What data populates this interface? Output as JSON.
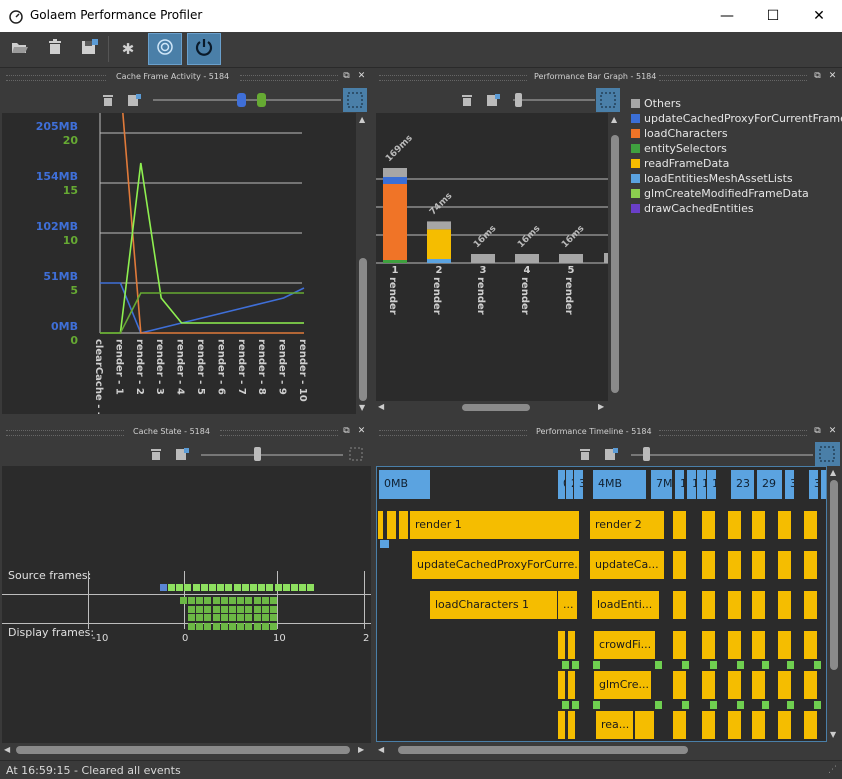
{
  "window": {
    "title": "Golaem Performance Profiler",
    "minimize": "—",
    "maximize": "☐",
    "close": "✕"
  },
  "toolbar": {
    "items": [
      "open-icon",
      "delete-icon",
      "save-icon",
      "settings-icon",
      "record-icon",
      "power-icon"
    ]
  },
  "panels": {
    "cache_frame": {
      "title": "Cache Frame Activity - 5184"
    },
    "bar_graph": {
      "title": "Performance Bar Graph - 5184"
    },
    "cache_state": {
      "title": "Cache State - 5184"
    },
    "timeline": {
      "title": "Performance Timeline - 5184"
    }
  },
  "chart_data": [
    {
      "type": "line",
      "title": "Cache Frame Activity - 5184",
      "categories": [
        "clearCache - -1",
        "render - 1",
        "render - 2",
        "render - 3",
        "render - 4",
        "render - 5",
        "render - 6",
        "render - 7",
        "render - 8",
        "render - 9",
        "render - 10"
      ],
      "left_axis_mb": [
        "205MB",
        "154MB",
        "102MB",
        "51MB",
        "0MB"
      ],
      "left_axis_counts": [
        "20",
        "15",
        "10",
        "5",
        "0"
      ],
      "series": [
        {
          "color": "#3f6fd8",
          "values": [
            5,
            5,
            0,
            0.5,
            1,
            1.5,
            2,
            2.5,
            3,
            3.5,
            4.5
          ]
        },
        {
          "color": "#e07a3a",
          "values": [
            25,
            25,
            0,
            0,
            0,
            0,
            0,
            0,
            0,
            0,
            0
          ]
        },
        {
          "color": "#8ef050",
          "values": [
            0,
            0,
            17,
            3.5,
            1,
            1,
            1,
            1,
            1,
            1,
            1
          ]
        },
        {
          "color": "#66aa33",
          "values": [
            0,
            0,
            4,
            4,
            4,
            4,
            4,
            4,
            4,
            4,
            4
          ]
        }
      ]
    },
    {
      "type": "bar",
      "title": "Performance Bar Graph - 5184",
      "categories": [
        "1\nrender",
        "2\nrender",
        "3\nrender",
        "4\nrender",
        "5\nrender"
      ],
      "cat_numbers": [
        "1",
        "2",
        "3",
        "4",
        "5"
      ],
      "cat_names": [
        "render",
        "render",
        "render",
        "render",
        "render"
      ],
      "value_labels": [
        "169ms",
        "74ms",
        "16ms",
        "16ms",
        "16ms"
      ],
      "values": [
        169,
        74,
        16,
        16,
        16
      ],
      "legend": [
        {
          "name": "Others",
          "color": "#a6a6a6"
        },
        {
          "name": "updateCachedProxyForCurrentFrame",
          "color": "#3b6fd6"
        },
        {
          "name": "loadCharacters",
          "color": "#f07427"
        },
        {
          "name": "entitySelectors",
          "color": "#3fa13f"
        },
        {
          "name": "readFrameData",
          "color": "#f5bd00"
        },
        {
          "name": "loadEntitiesMeshAssetLists",
          "color": "#5ba3e0"
        },
        {
          "name": "glmCreateModifiedFrameData",
          "color": "#8ccf4f"
        },
        {
          "name": "drawCachedEntities",
          "color": "#6a3fc8"
        }
      ]
    }
  ],
  "cache_state": {
    "source_label": "Source frames:",
    "display_label": "Display frames:",
    "ticks": [
      "-10",
      "0",
      "10",
      "2"
    ]
  },
  "timeline": {
    "row0": [
      "0MB",
      "0",
      "2",
      "3M",
      "4MB",
      "7M",
      "1",
      "12",
      "1",
      "18",
      "23",
      "29",
      "3",
      "34",
      "4"
    ],
    "row1": [
      "render 1",
      "render 2"
    ],
    "row2": [
      "updateCachedProxyForCurre...",
      "updateCa..."
    ],
    "row3": [
      "loadCharacters 1",
      "...",
      "loadEnti..."
    ],
    "row4": [
      "crowdFi..."
    ],
    "row5": [
      "glmCre..."
    ],
    "row6": [
      "rea..."
    ]
  },
  "status": {
    "text": "At 16:59:15 - Cleared all events"
  }
}
